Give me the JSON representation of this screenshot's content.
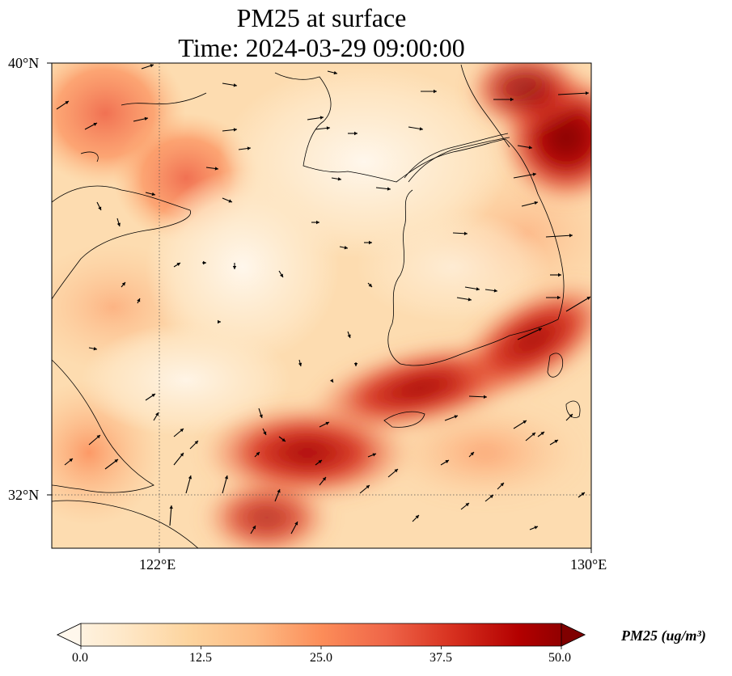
{
  "title": {
    "line1": "PM25 at surface",
    "line2": "Time: 2024-03-29 09:00:00"
  },
  "map": {
    "lon_range": [
      120,
      130
    ],
    "lat_range": [
      31,
      40
    ],
    "gridlines": "dotted",
    "tick_labels": {
      "lat": [
        "40°N",
        "32°N"
      ],
      "lon": [
        "122°E",
        "130°E"
      ]
    },
    "colors": {
      "low": "#fff5e6",
      "mid": "#fc8d59",
      "high": "#7f0000"
    },
    "wind_vectors": "shown"
  },
  "colorbar": {
    "ticks": [
      "0.0",
      "12.5",
      "25.0",
      "37.5",
      "50.0"
    ],
    "min": 0,
    "max": 50,
    "extend": "both",
    "colormap": "OrRd",
    "label": "PM25 (ug/m³)"
  },
  "chart_data": {
    "type": "heatmap",
    "variable": "PM25",
    "units": "ug/m3",
    "level": "surface",
    "time": "2024-03-29 09:00:00",
    "x_label": "longitude",
    "y_label": "latitude",
    "x_range": [
      120,
      130
    ],
    "y_range": [
      31,
      40
    ],
    "value_range": [
      0,
      50
    ],
    "features": [
      {
        "name": "northeast-high",
        "lon": 129.5,
        "lat": 38.9,
        "value": 50
      },
      {
        "name": "northwest-moderate",
        "lon": 121.5,
        "lat": 38.2,
        "value": 27
      },
      {
        "name": "southwest-band",
        "lon": 124.5,
        "lat": 33.5,
        "value": 45
      },
      {
        "name": "southeast-band",
        "lon": 128.5,
        "lat": 34.5,
        "value": 47
      },
      {
        "name": "central-clean",
        "lon": 124.5,
        "lat": 37.5,
        "value": 5
      }
    ]
  }
}
